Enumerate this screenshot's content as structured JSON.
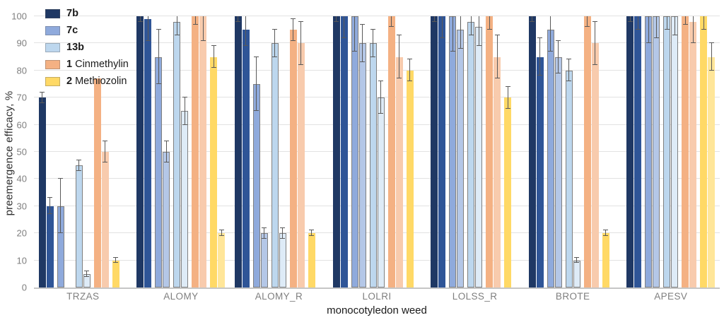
{
  "chart_data": {
    "type": "bar",
    "title": "",
    "xlabel": "monocotyledon weed",
    "ylabel": "preemergence efficacy, %",
    "ylim": [
      0,
      100
    ],
    "yticks": [
      0,
      10,
      20,
      30,
      40,
      50,
      60,
      70,
      80,
      90,
      100
    ],
    "grid": true,
    "legend_position": "top-left",
    "bars_per_series_per_category": 2,
    "error_bars": true,
    "categories": [
      "TRZAS",
      "ALOMY",
      "ALOMY_R",
      "LOLRI",
      "LOLSS_R",
      "BROTE",
      "APESV"
    ],
    "series": [
      {
        "name": "7b",
        "legend_bold": "7b",
        "legend_rest": "",
        "fills": [
          "#1F3864",
          "#2F5597"
        ],
        "outline": "none",
        "values": [
          [
            70,
            30
          ],
          [
            100,
            99
          ],
          [
            100,
            95
          ],
          [
            100,
            100
          ],
          [
            100,
            100
          ],
          [
            100,
            85
          ],
          [
            100,
            100
          ]
        ],
        "errors": [
          [
            2,
            3
          ],
          [
            2,
            8
          ],
          [
            2,
            6
          ],
          [
            2,
            8
          ],
          [
            2,
            8
          ],
          [
            2,
            7
          ],
          [
            2,
            5
          ]
        ]
      },
      {
        "name": "7c",
        "legend_bold": "7c",
        "legend_rest": "",
        "fills": [
          "#8FAADC",
          "#B4C7E7"
        ],
        "outline": "#7F7F7F",
        "values": [
          [
            30,
            null
          ],
          [
            85,
            50
          ],
          [
            75,
            20
          ],
          [
            100,
            90
          ],
          [
            100,
            95
          ],
          [
            95,
            85
          ],
          [
            100,
            100
          ]
        ],
        "errors": [
          [
            10,
            null
          ],
          [
            10,
            4
          ],
          [
            10,
            2
          ],
          [
            13,
            7
          ],
          [
            13,
            7
          ],
          [
            8,
            6
          ],
          [
            10,
            8
          ]
        ]
      },
      {
        "name": "13b",
        "legend_bold": "13b",
        "legend_rest": "",
        "fills": [
          "#BDD7EE",
          "#DEEBF7"
        ],
        "outline": "#7F7F7F",
        "values": [
          [
            45,
            5
          ],
          [
            98,
            65
          ],
          [
            90,
            20
          ],
          [
            90,
            70
          ],
          [
            98,
            96
          ],
          [
            80,
            10
          ],
          [
            100,
            100
          ]
        ],
        "errors": [
          [
            2,
            1
          ],
          [
            5,
            5
          ],
          [
            5,
            2
          ],
          [
            5,
            6
          ],
          [
            5,
            7
          ],
          [
            4,
            1
          ],
          [
            5,
            7
          ]
        ]
      },
      {
        "name": "1 Cinmethylin",
        "legend_bold": "1",
        "legend_rest": " Cinmethylin",
        "fills": [
          "#F4B183",
          "#F8CBAD"
        ],
        "outline": "none",
        "values": [
          [
            77,
            50
          ],
          [
            100,
            100
          ],
          [
            95,
            90
          ],
          [
            100,
            85
          ],
          [
            100,
            85
          ],
          [
            100,
            90
          ],
          [
            100,
            98
          ]
        ],
        "errors": [
          [
            0,
            4
          ],
          [
            3,
            9
          ],
          [
            4,
            8
          ],
          [
            4,
            8
          ],
          [
            5,
            8
          ],
          [
            4,
            8
          ],
          [
            3,
            8
          ]
        ]
      },
      {
        "name": "2 Methiozolin",
        "legend_bold": "2",
        "legend_rest": " Methiozolin",
        "fills": [
          "#FFD966",
          "#FFE699"
        ],
        "outline": "none",
        "values": [
          [
            10,
            null
          ],
          [
            85,
            20
          ],
          [
            20,
            null
          ],
          [
            80,
            null
          ],
          [
            70,
            null
          ],
          [
            20,
            null
          ],
          [
            100,
            85
          ]
        ],
        "errors": [
          [
            1,
            null
          ],
          [
            4,
            1
          ],
          [
            1,
            null
          ],
          [
            4,
            null
          ],
          [
            4,
            null
          ],
          [
            1,
            null
          ],
          [
            5,
            5
          ]
        ]
      }
    ],
    "style": {
      "grid_color": "#e2e2e2",
      "axis_color": "#c6c6c6",
      "tick_label_color": "#7f7f7f",
      "error_bar_color": "#595959"
    }
  }
}
